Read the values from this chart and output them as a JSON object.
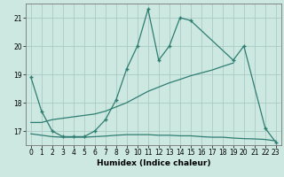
{
  "xlabel": "Humidex (Indice chaleur)",
  "background_color": "#cce8e0",
  "grid_color": "#aaccc4",
  "line_color": "#2e7d72",
  "ylim": [
    16.5,
    21.5
  ],
  "xlim": [
    -0.5,
    23.5
  ],
  "yticks": [
    17,
    18,
    19,
    20,
    21
  ],
  "xticks": [
    0,
    1,
    2,
    3,
    4,
    5,
    6,
    7,
    8,
    9,
    10,
    11,
    12,
    13,
    14,
    15,
    16,
    17,
    18,
    19,
    20,
    21,
    22,
    23
  ],
  "top_x": [
    0,
    1,
    2,
    3,
    4,
    5,
    6,
    7,
    8,
    9,
    10,
    11,
    12,
    13,
    14,
    15,
    19,
    20,
    22,
    23
  ],
  "top_y": [
    18.9,
    17.7,
    17.0,
    16.8,
    16.8,
    16.8,
    17.0,
    17.4,
    18.1,
    19.2,
    20.0,
    21.3,
    19.5,
    20.0,
    21.0,
    20.9,
    19.5,
    20.0,
    17.1,
    16.6
  ],
  "mid_x": [
    0,
    1,
    2,
    3,
    4,
    5,
    6,
    7,
    8,
    9,
    10,
    11,
    12,
    13,
    14,
    15,
    16,
    17,
    18,
    19
  ],
  "mid_y": [
    17.3,
    17.3,
    17.4,
    17.45,
    17.5,
    17.55,
    17.6,
    17.7,
    17.85,
    18.0,
    18.2,
    18.4,
    18.55,
    18.7,
    18.82,
    18.95,
    19.05,
    19.15,
    19.28,
    19.4
  ],
  "bot_x": [
    0,
    1,
    2,
    3,
    4,
    5,
    6,
    7,
    8,
    9,
    10,
    11,
    12,
    13,
    14,
    15,
    16,
    17,
    18,
    19,
    20,
    21,
    22,
    23
  ],
  "bot_y": [
    16.9,
    16.85,
    16.8,
    16.78,
    16.78,
    16.78,
    16.8,
    16.82,
    16.85,
    16.87,
    16.87,
    16.87,
    16.85,
    16.85,
    16.83,
    16.83,
    16.8,
    16.78,
    16.78,
    16.75,
    16.73,
    16.72,
    16.7,
    16.65
  ]
}
